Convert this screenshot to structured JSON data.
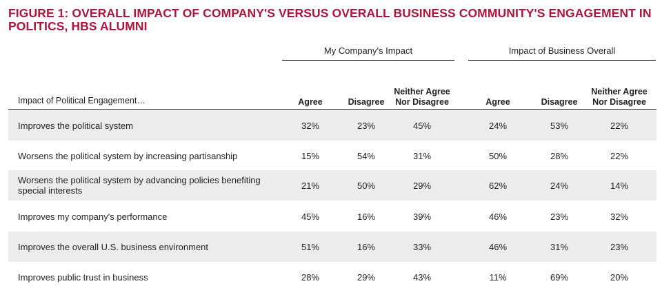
{
  "chart_data": {
    "type": "table",
    "title": "FIGURE 1: OVERALL IMPACT OF COMPANY'S VERSUS OVERALL BUSINESS COMMUNITY'S ENGAGEMENT IN POLITICS, HBS ALUMNI",
    "row_header": "Impact of Political Engagement…",
    "groups": [
      "My Company's Impact",
      "Impact of Business Overall"
    ],
    "columns": [
      "Agree",
      "Disagree",
      "Neither Agree Nor Disagree"
    ],
    "rows": [
      {
        "label": "Improves the political system",
        "values": [
          "32%",
          "23%",
          "45%",
          "24%",
          "53%",
          "22%"
        ]
      },
      {
        "label": "Worsens the political system by increasing partisanship",
        "values": [
          "15%",
          "54%",
          "31%",
          "50%",
          "28%",
          "22%"
        ]
      },
      {
        "label": "Worsens the political system by advancing policies benefiting special interests",
        "values": [
          "21%",
          "50%",
          "29%",
          "62%",
          "24%",
          "14%"
        ]
      },
      {
        "label": "Improves my company's performance",
        "values": [
          "45%",
          "16%",
          "39%",
          "46%",
          "23%",
          "32%"
        ]
      },
      {
        "label": "Improves the overall U.S. business environment",
        "values": [
          "51%",
          "16%",
          "33%",
          "46%",
          "31%",
          "23%"
        ]
      },
      {
        "label": "Improves public trust in business",
        "values": [
          "28%",
          "29%",
          "43%",
          "11%",
          "69%",
          "20%"
        ]
      }
    ]
  },
  "colors": {
    "title": "#b0143c",
    "shade": "#ececec"
  }
}
